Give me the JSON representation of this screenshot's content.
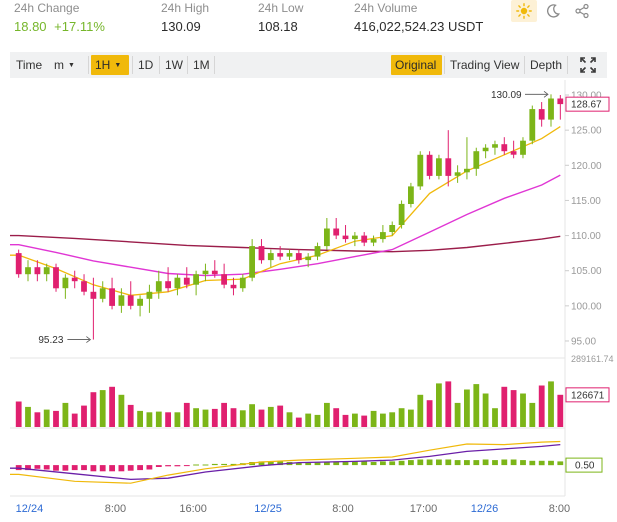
{
  "stats": [
    {
      "label": "24h Change",
      "value_a": "18.80",
      "value_b": "+17.11%",
      "accent": "green"
    },
    {
      "label": "24h High",
      "value": "130.09"
    },
    {
      "label": "24h Low",
      "value": "108.18"
    },
    {
      "label": "24h Volume",
      "value": "416,022,524.23 USDT"
    }
  ],
  "theme": {
    "icons": [
      "sun-icon",
      "moon-icon",
      "share-icon"
    ]
  },
  "toolbar": {
    "time": "Time",
    "minute": "m",
    "interval": "1H",
    "d1": "1D",
    "w1": "1W",
    "m1": "1M",
    "original": "Original",
    "tradingview": "Trading View",
    "depth": "Depth",
    "fullscreen_icon": "expand-icon"
  },
  "colors": {
    "up": "#7cb518",
    "down": "#e0206f",
    "ma_short": "#f0b90b",
    "ma_mid": "#e036d4",
    "ma_long": "#9b1d4a",
    "macd_dif": "#f0b90b",
    "macd_dea": "#6a1fa8"
  },
  "chart_data": {
    "type": "candlestick",
    "price_axis": {
      "ticks": [
        "130.00",
        "125.00",
        "120.00",
        "115.00",
        "110.00",
        "105.00",
        "100.00",
        "95.00"
      ],
      "range": [
        94,
        131
      ]
    },
    "current_price": "128.67",
    "high_marker": "130.09",
    "low_marker": "95.23",
    "volume_axis": {
      "top_label": "289161.74",
      "current": "126671"
    },
    "macd_axis": {
      "label": "0.50"
    },
    "time_labels": [
      {
        "text": "12/24",
        "blue": true,
        "pos": 0.035
      },
      {
        "text": "8:00",
        "blue": false,
        "pos": 0.19
      },
      {
        "text": "16:00",
        "blue": false,
        "pos": 0.33
      },
      {
        "text": "12/25",
        "blue": true,
        "pos": 0.465
      },
      {
        "text": "8:00",
        "blue": false,
        "pos": 0.6
      },
      {
        "text": "17:00",
        "blue": false,
        "pos": 0.745
      },
      {
        "text": "12/26",
        "blue": true,
        "pos": 0.855
      },
      {
        "text": "8:00",
        "blue": false,
        "pos": 0.99
      }
    ],
    "candles": [
      [
        107.5,
        108.0,
        104.0,
        104.5
      ],
      [
        104.5,
        106.5,
        103.5,
        105.5
      ],
      [
        105.5,
        106.5,
        103.5,
        104.5
      ],
      [
        104.5,
        106.0,
        103.5,
        105.5
      ],
      [
        105.5,
        106.0,
        102.0,
        102.5
      ],
      [
        102.5,
        104.5,
        101.0,
        104.0
      ],
      [
        104.0,
        105.0,
        102.5,
        103.5
      ],
      [
        103.5,
        104.5,
        101.5,
        102.0
      ],
      [
        102.0,
        104.0,
        95.2,
        101.0
      ],
      [
        101.0,
        103.5,
        100.5,
        102.5
      ],
      [
        102.5,
        104.0,
        99.5,
        100.0
      ],
      [
        100.0,
        102.5,
        99.0,
        101.5
      ],
      [
        101.5,
        103.5,
        99.5,
        100.0
      ],
      [
        100.0,
        101.5,
        98.5,
        101.0
      ],
      [
        101.0,
        103.0,
        99.0,
        102.0
      ],
      [
        102.0,
        105.0,
        101.0,
        103.5
      ],
      [
        103.5,
        105.5,
        102.0,
        102.5
      ],
      [
        102.5,
        104.5,
        101.5,
        104.0
      ],
      [
        104.0,
        105.5,
        102.5,
        103.0
      ],
      [
        103.0,
        105.0,
        101.5,
        104.5
      ],
      [
        104.5,
        106.0,
        103.5,
        105.0
      ],
      [
        105.0,
        106.5,
        104.0,
        104.5
      ],
      [
        104.5,
        106.0,
        102.5,
        103.0
      ],
      [
        103.0,
        104.0,
        101.5,
        102.5
      ],
      [
        102.5,
        104.5,
        102.0,
        104.0
      ],
      [
        104.0,
        109.5,
        103.5,
        108.5
      ],
      [
        108.5,
        109.5,
        106.0,
        106.5
      ],
      [
        106.5,
        108.0,
        105.5,
        107.5
      ],
      [
        107.5,
        108.5,
        106.5,
        107.0
      ],
      [
        107.0,
        108.0,
        106.5,
        107.5
      ],
      [
        107.5,
        108.0,
        106.0,
        106.5
      ],
      [
        106.5,
        107.5,
        105.5,
        107.0
      ],
      [
        107.0,
        109.0,
        106.5,
        108.5
      ],
      [
        108.5,
        112.5,
        108.0,
        111.0
      ],
      [
        111.0,
        112.5,
        109.5,
        110.0
      ],
      [
        110.0,
        111.5,
        109.0,
        109.5
      ],
      [
        109.5,
        110.5,
        108.5,
        110.0
      ],
      [
        110.0,
        110.5,
        108.5,
        109.0
      ],
      [
        109.0,
        110.0,
        108.5,
        109.5
      ],
      [
        109.5,
        111.5,
        109.0,
        110.5
      ],
      [
        110.5,
        112.0,
        110.0,
        111.5
      ],
      [
        111.5,
        115.0,
        111.0,
        114.5
      ],
      [
        114.5,
        117.5,
        114.0,
        117.0
      ],
      [
        117.0,
        122.0,
        116.5,
        121.5
      ],
      [
        121.5,
        122.0,
        118.0,
        118.5
      ],
      [
        118.5,
        121.5,
        118.0,
        121.0
      ],
      [
        121.0,
        125.0,
        117.0,
        118.5
      ],
      [
        118.5,
        120.0,
        117.5,
        119.0
      ],
      [
        119.0,
        124.0,
        118.0,
        119.5
      ],
      [
        119.5,
        122.5,
        118.5,
        122.0
      ],
      [
        122.0,
        123.0,
        121.0,
        122.5
      ],
      [
        122.5,
        123.5,
        121.5,
        123.0
      ],
      [
        123.0,
        124.0,
        121.5,
        122.0
      ],
      [
        122.0,
        123.5,
        121.0,
        121.5
      ],
      [
        121.5,
        124.0,
        121.0,
        123.5
      ],
      [
        123.5,
        128.5,
        123.0,
        128.0
      ],
      [
        128.0,
        129.0,
        125.5,
        126.5
      ],
      [
        126.5,
        130.1,
        125.5,
        129.5
      ],
      [
        129.5,
        130.0,
        126.5,
        128.7
      ]
    ],
    "volumes": [
      0.38,
      0.3,
      0.22,
      0.26,
      0.24,
      0.36,
      0.2,
      0.32,
      0.52,
      0.55,
      0.6,
      0.48,
      0.33,
      0.24,
      0.22,
      0.23,
      0.22,
      0.22,
      0.36,
      0.28,
      0.26,
      0.27,
      0.36,
      0.28,
      0.25,
      0.34,
      0.26,
      0.3,
      0.32,
      0.22,
      0.14,
      0.2,
      0.18,
      0.36,
      0.28,
      0.18,
      0.2,
      0.17,
      0.24,
      0.2,
      0.22,
      0.28,
      0.26,
      0.48,
      0.4,
      0.65,
      0.68,
      0.36,
      0.56,
      0.64,
      0.5,
      0.28,
      0.6,
      0.55,
      0.5,
      0.36,
      0.62,
      0.68,
      0.48
    ],
    "ma_short": [
      [
        0,
        107.2
      ],
      [
        4,
        105.3
      ],
      [
        8,
        103.0
      ],
      [
        12,
        101.5
      ],
      [
        16,
        102.0
      ],
      [
        20,
        103.6
      ],
      [
        24,
        103.8
      ],
      [
        28,
        106.0
      ],
      [
        32,
        107.2
      ],
      [
        36,
        109.2
      ],
      [
        40,
        110.0
      ],
      [
        44,
        116.0
      ],
      [
        48,
        119.2
      ],
      [
        52,
        121.5
      ],
      [
        56,
        123.8
      ],
      [
        58,
        125.5
      ]
    ],
    "ma_mid": [
      [
        0,
        108.7
      ],
      [
        4,
        107.6
      ],
      [
        8,
        106.4
      ],
      [
        12,
        105.5
      ],
      [
        16,
        104.6
      ],
      [
        20,
        104.3
      ],
      [
        24,
        104.5
      ],
      [
        28,
        105.2
      ],
      [
        32,
        106.0
      ],
      [
        36,
        107.0
      ],
      [
        40,
        108.0
      ],
      [
        44,
        110.5
      ],
      [
        48,
        113.0
      ],
      [
        52,
        115.3
      ],
      [
        56,
        117.2
      ],
      [
        58,
        118.6
      ]
    ],
    "ma_long": [
      [
        0,
        110.0
      ],
      [
        6,
        109.6
      ],
      [
        12,
        109.1
      ],
      [
        18,
        108.6
      ],
      [
        24,
        108.3
      ],
      [
        30,
        108.0
      ],
      [
        36,
        107.8
      ],
      [
        40,
        107.7
      ],
      [
        44,
        107.9
      ],
      [
        48,
        108.3
      ],
      [
        52,
        108.9
      ],
      [
        56,
        109.5
      ],
      [
        58,
        109.9
      ]
    ],
    "macd_hist": [
      -0.8,
      -0.8,
      -0.6,
      -0.7,
      -0.9,
      -0.9,
      -0.8,
      -0.8,
      -1.0,
      -1.0,
      -1.0,
      -1.0,
      -0.9,
      -0.8,
      -0.7,
      -0.3,
      -0.2,
      -0.2,
      -0.1,
      0.1,
      0.1,
      0.2,
      0.2,
      0.2,
      0.3,
      0.5,
      0.6,
      0.6,
      0.6,
      0.5,
      0.4,
      0.5,
      0.4,
      0.5,
      0.6,
      0.6,
      0.6,
      0.6,
      0.5,
      0.6,
      0.6,
      0.7,
      0.8,
      0.9,
      0.9,
      0.9,
      0.9,
      0.8,
      0.8,
      0.8,
      0.9,
      0.8,
      0.9,
      0.9,
      0.8,
      0.7,
      0.7,
      0.7,
      0.6
    ],
    "macd_dif": [
      [
        0,
        -1.5
      ],
      [
        6,
        -2.6
      ],
      [
        12,
        -2.9
      ],
      [
        16,
        -1.6
      ],
      [
        20,
        -0.6
      ],
      [
        26,
        0.5
      ],
      [
        30,
        0.8
      ],
      [
        36,
        1.1
      ],
      [
        40,
        1.3
      ],
      [
        44,
        2.4
      ],
      [
        48,
        3.4
      ],
      [
        52,
        3.3
      ],
      [
        56,
        3.7
      ],
      [
        58,
        3.8
      ]
    ],
    "macd_dea": [
      [
        0,
        -0.5
      ],
      [
        6,
        -1.4
      ],
      [
        12,
        -2.3
      ],
      [
        16,
        -2.1
      ],
      [
        20,
        -1.1
      ],
      [
        26,
        -0.1
      ],
      [
        30,
        0.4
      ],
      [
        36,
        0.6
      ],
      [
        40,
        0.8
      ],
      [
        44,
        1.4
      ],
      [
        48,
        2.2
      ],
      [
        52,
        2.6
      ],
      [
        56,
        3.0
      ],
      [
        58,
        3.3
      ]
    ]
  }
}
